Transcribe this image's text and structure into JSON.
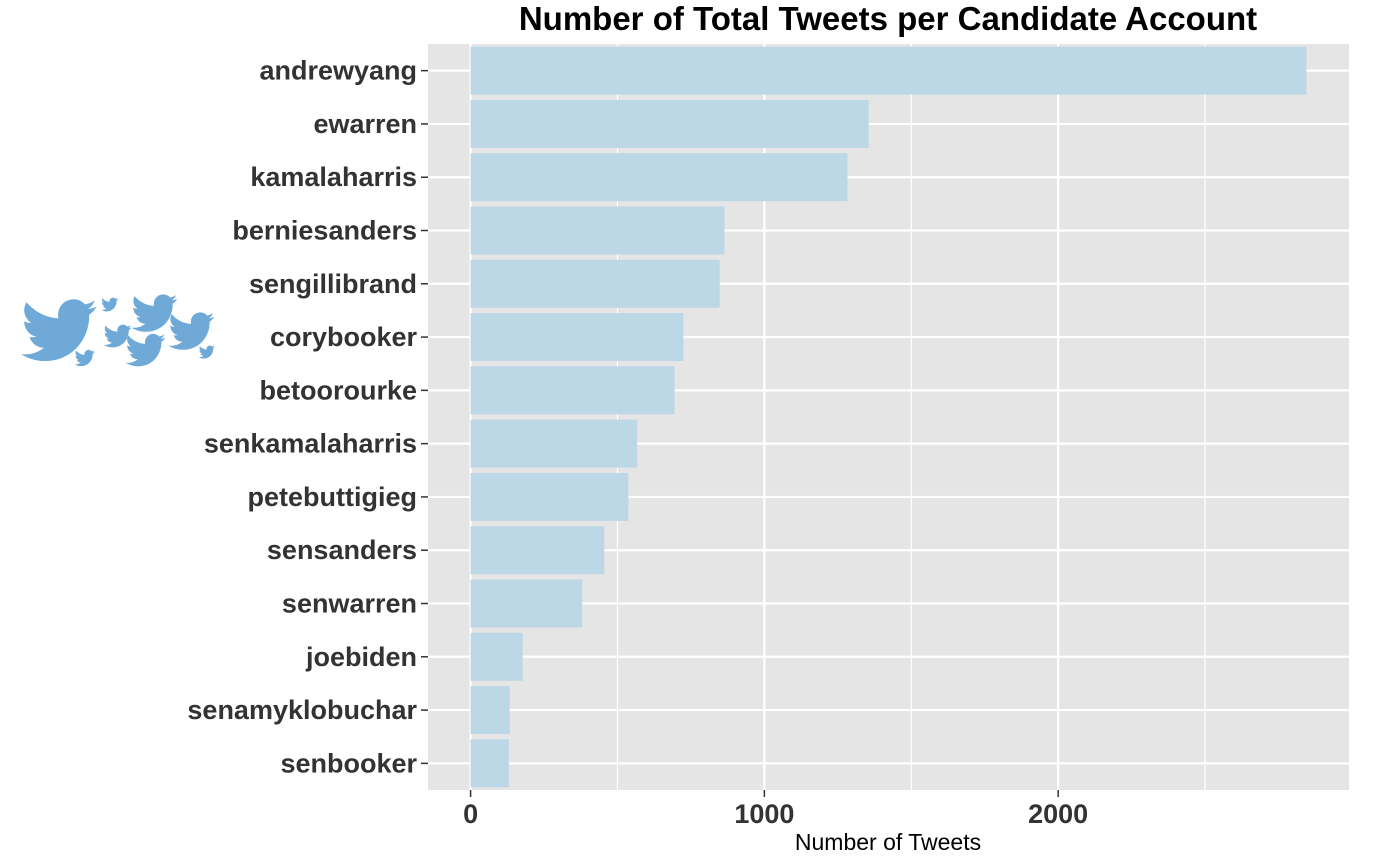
{
  "chart_data": {
    "type": "bar",
    "orientation": "horizontal",
    "title": "Number of Total Tweets per Candidate Account",
    "xlabel": "Number of Tweets",
    "ylabel": "",
    "categories": [
      "andrewyang",
      "ewarren",
      "kamalaharris",
      "berniesanders",
      "sengillibrand",
      "corybooker",
      "betoorourke",
      "senkamalaharris",
      "petebuttigieg",
      "sensanders",
      "senwarren",
      "joebiden",
      "senamyklobuchar",
      "senbooker"
    ],
    "values": [
      2845,
      1355,
      1283,
      864,
      848,
      724,
      694,
      567,
      537,
      455,
      380,
      177,
      133,
      130
    ],
    "xlim": [
      -145,
      2990
    ],
    "xticks": [
      0,
      1000,
      2000
    ],
    "xtick_labels": [
      "0",
      "1000",
      "2000"
    ],
    "grid": true,
    "legend": "none",
    "colors": {
      "bar": "#bcd7e6",
      "panel": "#e5e5e5",
      "grid": "#ffffff",
      "logo": "#6fa9d8"
    },
    "decoration_icon": "twitter-birds-icon"
  }
}
